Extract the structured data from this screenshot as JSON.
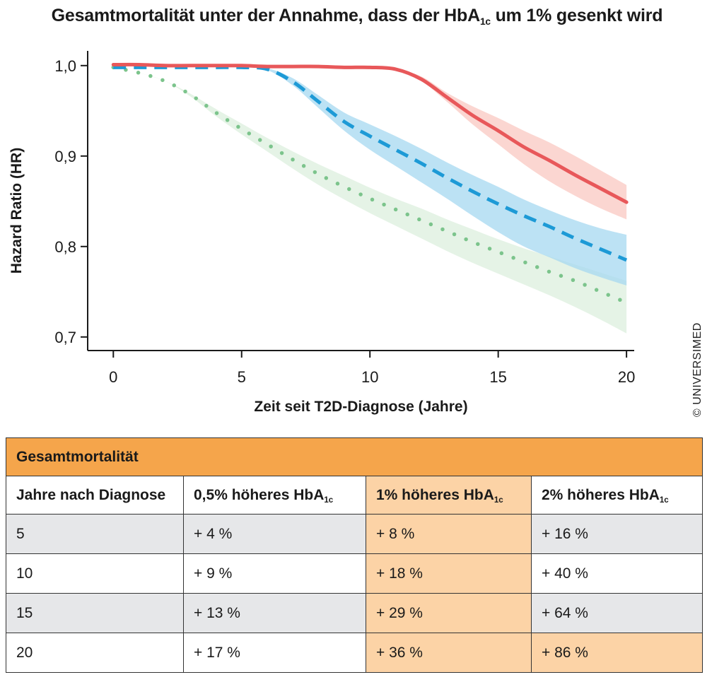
{
  "title": {
    "before": "Gesamtmortalität unter der Annahme, dass der HbA",
    "sub": "1c",
    "after": " um 1% gesenkt wird"
  },
  "copyright": "© UNIVERSIMED",
  "chart_data": {
    "type": "line",
    "xlabel": "Zeit seit T2D-Diagnose (Jahre)",
    "ylabel": "Hazard Ratio (HR)",
    "xlim": [
      -1,
      20.3
    ],
    "ylim": [
      0.685,
      1.01
    ],
    "xticks": [
      "0",
      "5",
      "10",
      "15",
      "20"
    ],
    "yticks": [
      "1,0",
      "0,9",
      "0,8",
      "0,7"
    ],
    "grid": false,
    "x": [
      0,
      1,
      2,
      3,
      4,
      5,
      6,
      7,
      8,
      9,
      10,
      11,
      12,
      13,
      14,
      15,
      16,
      17,
      18,
      19,
      20
    ],
    "series": [
      {
        "style": "solid",
        "color": "#e8585a",
        "band_color": "#f9c8c2",
        "values": [
          1.001,
          1.001,
          1.0,
          1.0,
          1.0,
          1.0,
          0.999,
          0.999,
          0.999,
          0.998,
          0.998,
          0.996,
          0.985,
          0.965,
          0.945,
          0.928,
          0.91,
          0.895,
          0.879,
          0.864,
          0.849
        ],
        "lower": [
          1.001,
          1.001,
          1.0,
          1.0,
          1.0,
          1.0,
          0.999,
          0.999,
          0.999,
          0.998,
          0.998,
          0.996,
          0.983,
          0.96,
          0.935,
          0.913,
          0.891,
          0.872,
          0.856,
          0.842,
          0.83
        ],
        "upper": [
          1.001,
          1.001,
          1.0,
          1.0,
          1.0,
          1.0,
          0.999,
          0.999,
          0.999,
          0.998,
          0.998,
          0.996,
          0.988,
          0.97,
          0.955,
          0.942,
          0.928,
          0.915,
          0.9,
          0.884,
          0.868
        ]
      },
      {
        "style": "dashed",
        "color": "#1d9ad6",
        "band_color": "#a6d8f0",
        "values": [
          0.998,
          0.998,
          0.998,
          0.998,
          0.998,
          0.998,
          0.996,
          0.982,
          0.96,
          0.938,
          0.922,
          0.907,
          0.892,
          0.876,
          0.861,
          0.847,
          0.834,
          0.822,
          0.809,
          0.797,
          0.785
        ],
        "lower": [
          0.998,
          0.998,
          0.998,
          0.998,
          0.998,
          0.998,
          0.995,
          0.978,
          0.953,
          0.928,
          0.907,
          0.889,
          0.871,
          0.853,
          0.834,
          0.816,
          0.8,
          0.788,
          0.776,
          0.766,
          0.757
        ],
        "upper": [
          0.998,
          0.998,
          0.998,
          0.998,
          0.998,
          0.998,
          0.997,
          0.986,
          0.967,
          0.948,
          0.935,
          0.922,
          0.908,
          0.893,
          0.879,
          0.866,
          0.852,
          0.84,
          0.829,
          0.82,
          0.813
        ]
      },
      {
        "style": "dotted",
        "color": "#7cc48c",
        "band_color": "#dcefdd",
        "values": [
          0.998,
          0.992,
          0.983,
          0.968,
          0.948,
          0.93,
          0.913,
          0.896,
          0.88,
          0.866,
          0.853,
          0.841,
          0.829,
          0.817,
          0.805,
          0.794,
          0.783,
          0.772,
          0.762,
          0.75,
          0.738
        ],
        "lower": [
          0.998,
          0.992,
          0.983,
          0.966,
          0.944,
          0.924,
          0.905,
          0.886,
          0.868,
          0.852,
          0.837,
          0.823,
          0.809,
          0.795,
          0.782,
          0.77,
          0.758,
          0.746,
          0.733,
          0.719,
          0.704
        ],
        "upper": [
          0.998,
          0.992,
          0.983,
          0.969,
          0.952,
          0.936,
          0.92,
          0.905,
          0.891,
          0.878,
          0.865,
          0.853,
          0.842,
          0.83,
          0.819,
          0.808,
          0.798,
          0.789,
          0.78,
          0.771,
          0.762
        ]
      }
    ]
  },
  "table": {
    "header": "Gesamtmortalität",
    "columns": [
      {
        "text": "Jahre nach Diagnose",
        "sub": ""
      },
      {
        "text": "0,5% höheres HbA",
        "sub": "1c"
      },
      {
        "text": "1% höheres HbA",
        "sub": "1c"
      },
      {
        "text": "2% höheres HbA",
        "sub": "1c"
      }
    ],
    "rows": [
      [
        "5",
        "+ 4 %",
        "+ 8 %",
        "+ 16 %"
      ],
      [
        "10",
        "+ 9 %",
        "+ 18 %",
        "+ 40 %"
      ],
      [
        "15",
        "+ 13 %",
        "+ 29 %",
        "+ 64 %"
      ],
      [
        "20",
        "+ 17 %",
        "+ 36 %",
        "+ 86 %"
      ]
    ]
  },
  "colors": {
    "header": "#f5a54b",
    "highlight": "#fcd3a6",
    "stripe": "#e6e7e9"
  }
}
